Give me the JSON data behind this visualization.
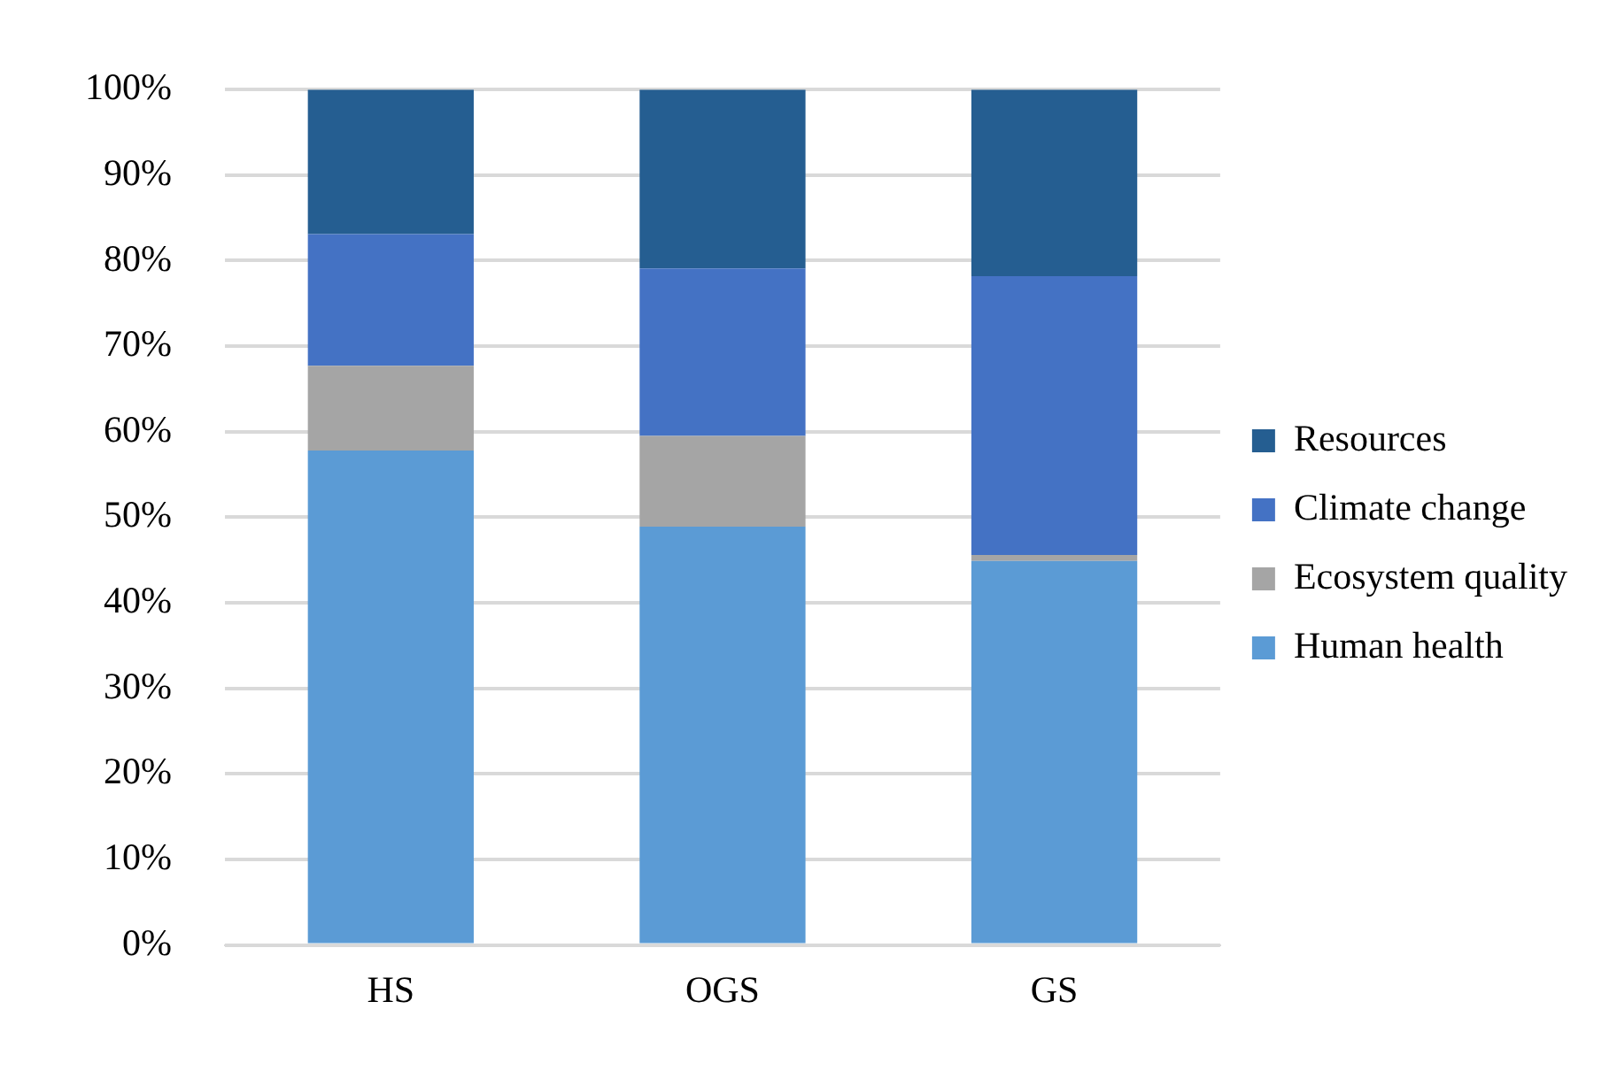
{
  "chart_data": {
    "type": "bar",
    "stacked": true,
    "categories": [
      "HS",
      "OGS",
      "GS"
    ],
    "series": [
      {
        "name": "Human health",
        "color": "#5b9bd5",
        "values": [
          57.8,
          48.9,
          44.9
        ]
      },
      {
        "name": "Ecosystem quality",
        "color": "#a5a5a5",
        "values": [
          9.9,
          10.6,
          0.7
        ]
      },
      {
        "name": "Climate change",
        "color": "#4472c4",
        "values": [
          15.4,
          19.6,
          32.6
        ]
      },
      {
        "name": "Resources",
        "color": "#255e91",
        "values": [
          16.9,
          20.9,
          21.8
        ]
      }
    ],
    "ylim": [
      0,
      100
    ],
    "yticks": [
      {
        "value": 0,
        "label": "0%"
      },
      {
        "value": 10,
        "label": "10%"
      },
      {
        "value": 20,
        "label": "20%"
      },
      {
        "value": 30,
        "label": "30%"
      },
      {
        "value": 40,
        "label": "40%"
      },
      {
        "value": 50,
        "label": "50%"
      },
      {
        "value": 60,
        "label": "60%"
      },
      {
        "value": 70,
        "label": "70%"
      },
      {
        "value": 80,
        "label": "80%"
      },
      {
        "value": 90,
        "label": "90%"
      },
      {
        "value": 100,
        "label": "100%"
      }
    ],
    "grid": "y",
    "legend": "right"
  }
}
